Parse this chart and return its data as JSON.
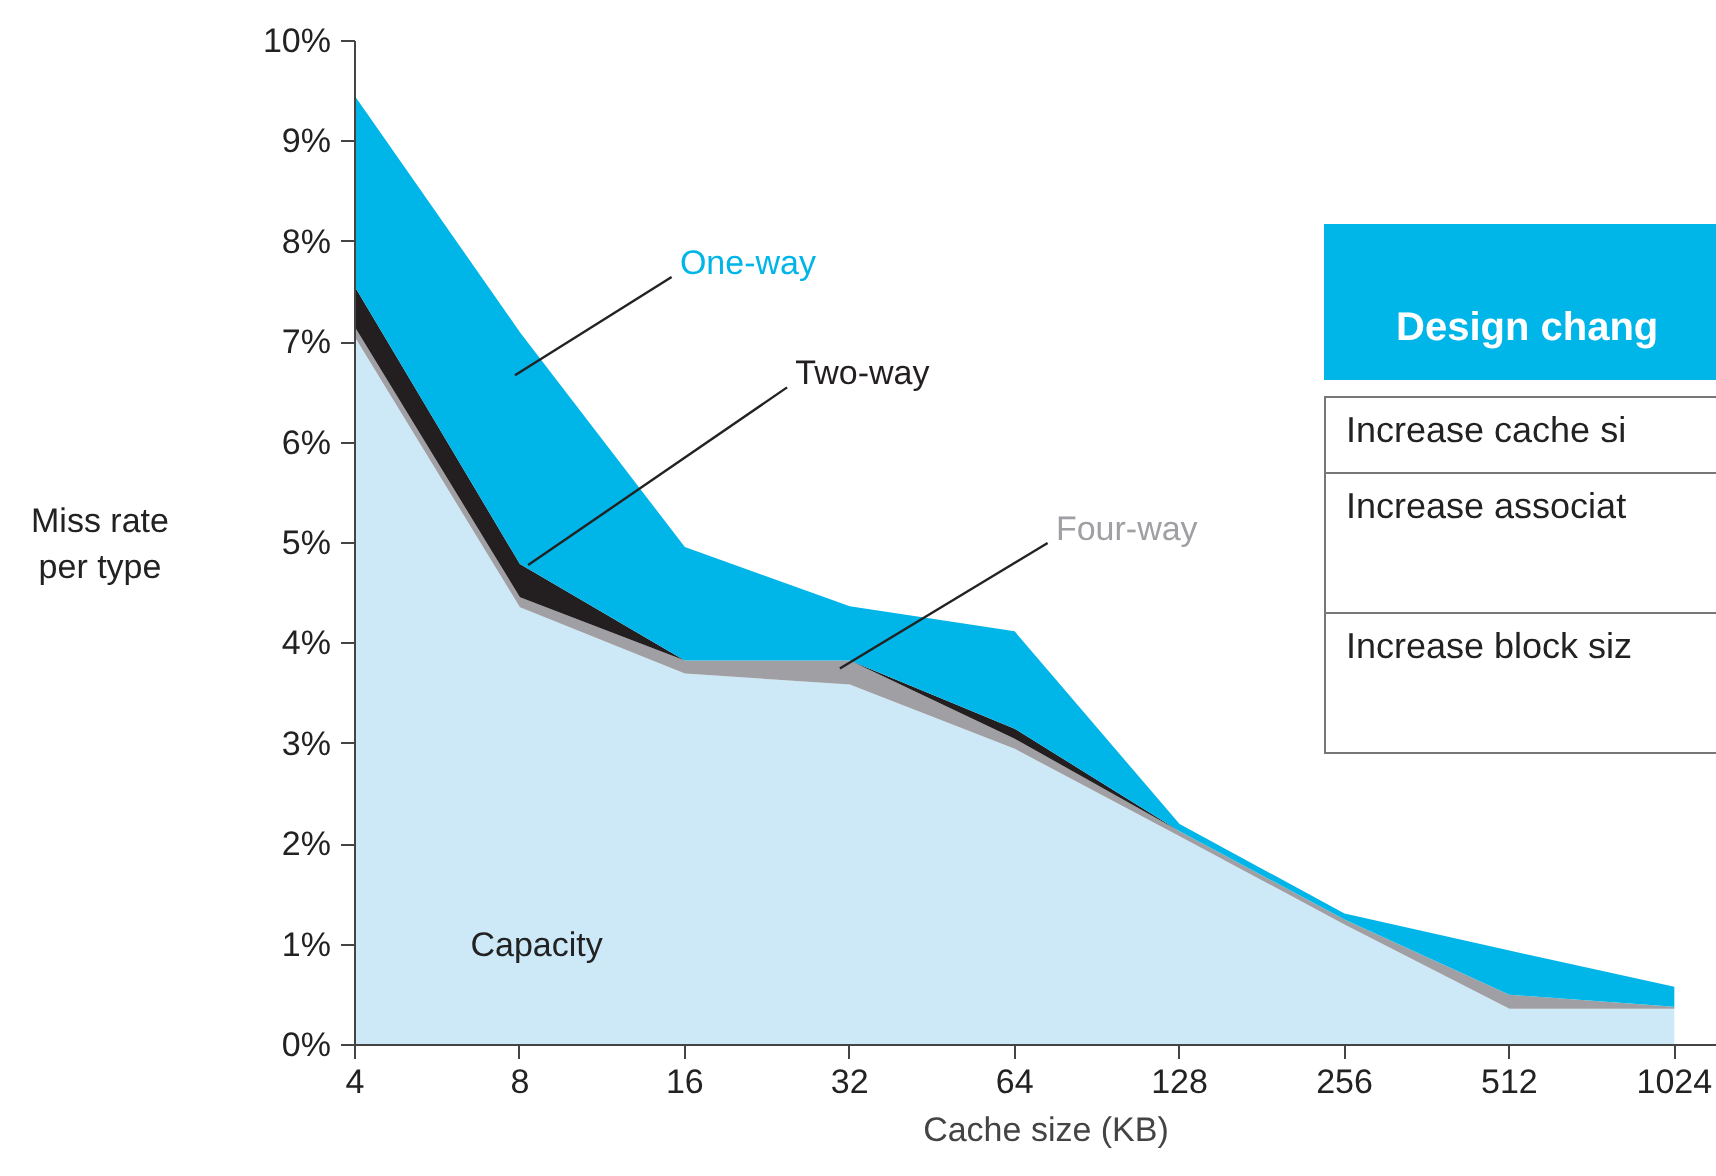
{
  "chart_data": {
    "type": "area",
    "stacked": true,
    "xlabel": "Cache size (KB)",
    "ylabel": "Miss rate\nper type",
    "categories": [
      "4",
      "8",
      "16",
      "32",
      "64",
      "128",
      "256",
      "512",
      "1024"
    ],
    "series": [
      {
        "name": "Capacity",
        "color": "#cde9f8",
        "values": [
          7.05,
          4.36,
          3.7,
          3.59,
          2.95,
          2.08,
          1.2,
          0.36,
          0.36
        ]
      },
      {
        "name": "Four-way",
        "color": "#a0a0a4",
        "values": [
          0.1,
          0.1,
          0.13,
          0.24,
          0.1,
          0.05,
          0.05,
          0.14,
          0.02
        ]
      },
      {
        "name": "Two-way",
        "color": "#231f20",
        "values": [
          0.4,
          0.33,
          0,
          0,
          0.1,
          0,
          0,
          0,
          0
        ]
      },
      {
        "name": "One-way",
        "color": "#00b5e8",
        "values": [
          1.9,
          2.31,
          1.13,
          0.54,
          0.97,
          0.07,
          0.06,
          0.44,
          0.2
        ]
      }
    ],
    "ylim": [
      0,
      10
    ],
    "yticks": [
      {
        "value": 0,
        "label": "0%"
      },
      {
        "value": 1,
        "label": "1%"
      },
      {
        "value": 2,
        "label": "2%"
      },
      {
        "value": 3,
        "label": "3%"
      },
      {
        "value": 4,
        "label": "4%"
      },
      {
        "value": 5,
        "label": "5%"
      },
      {
        "value": 6,
        "label": "6%"
      },
      {
        "value": 7,
        "label": "7%"
      },
      {
        "value": 8,
        "label": "8%"
      },
      {
        "value": 9,
        "label": "9%"
      },
      {
        "value": 10,
        "label": "10%"
      }
    ],
    "annotations": [
      "Design chang",
      "Increase cache si",
      "Increase associat",
      "Increase block siz"
    ],
    "grid": false,
    "legend": false
  }
}
